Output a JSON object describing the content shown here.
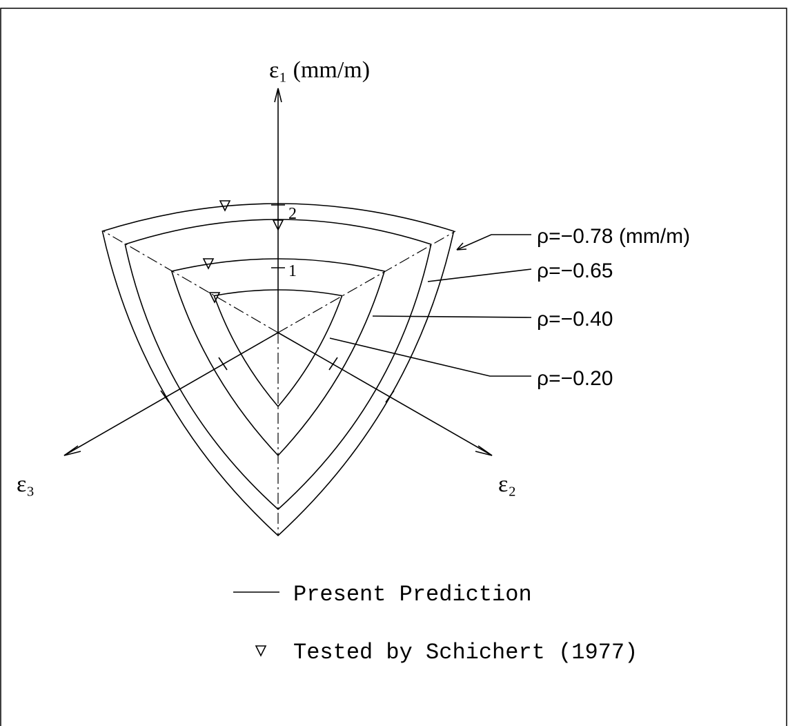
{
  "axes": {
    "e1": "ε₁ (mm/m)",
    "e2": "ε₂",
    "e3": "ε₃",
    "ticks": [
      "2",
      "1"
    ]
  },
  "curves": [
    "ρ=−0.78 (mm/m)",
    "ρ=−0.65",
    "ρ=−0.40",
    "ρ=−0.20"
  ],
  "legend": {
    "line": "Present Prediction",
    "marker": "Tested by Schichert (1977)"
  }
}
